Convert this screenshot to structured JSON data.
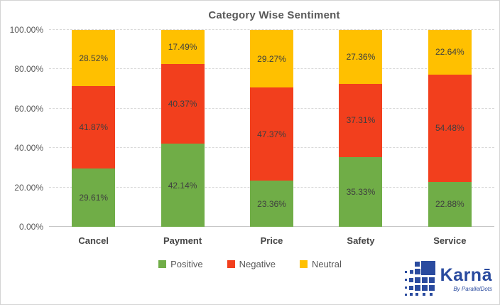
{
  "chart_data": {
    "type": "bar",
    "stacked": true,
    "title": "Category Wise Sentiment",
    "categories": [
      "Cancel",
      "Payment",
      "Price",
      "Safety",
      "Service"
    ],
    "series": [
      {
        "name": "Positive",
        "color": "#70AD47",
        "values": [
          29.61,
          42.14,
          23.36,
          35.33,
          22.88
        ]
      },
      {
        "name": "Negative",
        "color": "#F23F1D",
        "values": [
          41.87,
          40.37,
          47.37,
          37.31,
          54.48
        ]
      },
      {
        "name": "Neutral",
        "color": "#FFC000",
        "values": [
          28.52,
          17.49,
          29.27,
          27.36,
          22.64
        ]
      }
    ],
    "y_ticks": [
      "0.00%",
      "20.00%",
      "40.00%",
      "60.00%",
      "80.00%",
      "100.00%"
    ],
    "ylim": [
      0,
      100
    ],
    "value_suffix": "%",
    "grid": "horizontal-dashed",
    "legend_position": "bottom"
  },
  "colors": {
    "title_text": "#595959",
    "axis_text": "#595959",
    "category_text": "#454545",
    "data_label_text": "#3F3F3F",
    "gridline": "#D9D9D9",
    "axis_line": "#C6C6C6",
    "frame_border": "#D4D4D4",
    "logo_blue": "#2A4B9F"
  },
  "logo": {
    "brand": "Karnā",
    "tagline": "By ParallelDots"
  }
}
